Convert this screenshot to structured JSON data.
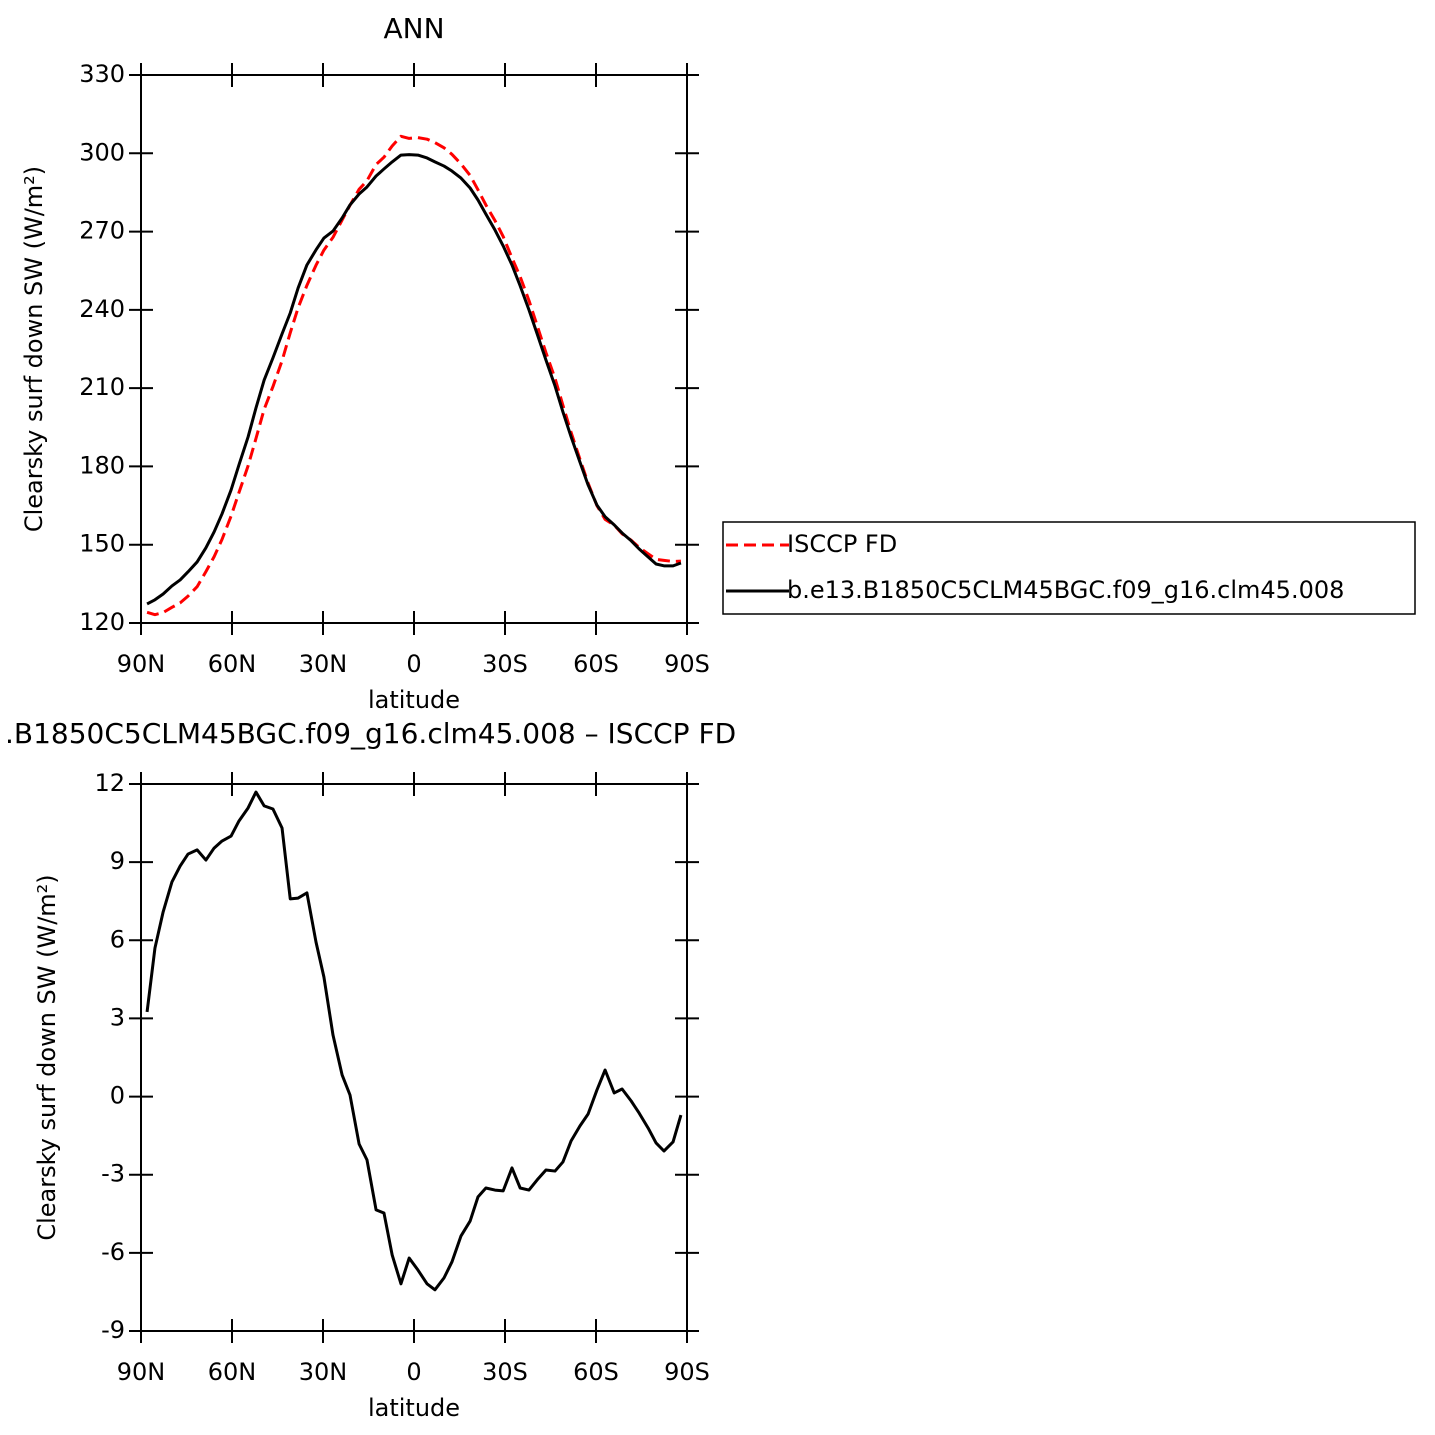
{
  "chart_data": [
    {
      "type": "line",
      "title": "ANN",
      "xlabel": "latitude",
      "ylabel": "Clearsky surf down SW (W/m²)",
      "x": [
        88.0,
        85.4,
        82.7,
        79.8,
        77.1,
        74.5,
        71.5,
        68.6,
        65.9,
        63.3,
        60.3,
        57.7,
        54.7,
        52.1,
        49.4,
        46.5,
        43.5,
        40.8,
        38.2,
        35.3,
        32.3,
        29.7,
        26.7,
        23.7,
        21.1,
        18.1,
        15.5,
        12.5,
        9.9,
        7.2,
        4.3,
        1.6,
        -1.3,
        -4.3,
        -6.9,
        -9.9,
        -12.5,
        -15.5,
        -18.5,
        -21.1,
        -23.7,
        -26.7,
        -29.4,
        -32.3,
        -35.0,
        -37.9,
        -40.6,
        -43.5,
        -46.5,
        -49.1,
        -51.8,
        -54.7,
        -57.4,
        -60.3,
        -63.0,
        -66.0,
        -68.6,
        -71.6,
        -74.2,
        -77.2,
        -79.8,
        -82.4,
        -85.4,
        -88.0
      ],
      "xlim": [
        90,
        -90
      ],
      "xticks": [
        {
          "value": 90,
          "label": "90N"
        },
        {
          "value": 60,
          "label": "60N"
        },
        {
          "value": 30,
          "label": "30N"
        },
        0,
        {
          "value": -30,
          "label": "30S"
        },
        {
          "value": -60,
          "label": "60S"
        },
        {
          "value": -90,
          "label": "90S"
        }
      ],
      "ylim": [
        120,
        330
      ],
      "yticks": [
        120,
        150,
        180,
        210,
        240,
        270,
        300,
        330
      ],
      "legend": "right",
      "series": [
        {
          "name": "ISCCP FD",
          "color": "#ff0000",
          "line_style": "dashed",
          "values": [
            124.1,
            123.2,
            124.0,
            126.0,
            127.7,
            130.3,
            133.9,
            139.7,
            145.4,
            152.0,
            161.0,
            170.0,
            180.2,
            190.7,
            201.9,
            210.6,
            220.5,
            231.2,
            240.8,
            249.4,
            257.1,
            262.9,
            267.8,
            274.4,
            280.1,
            286.2,
            289.5,
            295.7,
            298.5,
            302.8,
            306.5,
            305.7,
            306.0,
            305.4,
            304.1,
            302.1,
            299.6,
            295.9,
            291.5,
            286.0,
            280.2,
            274.2,
            268.1,
            259.9,
            252.7,
            243.6,
            234.0,
            223.6,
            213.7,
            203.4,
            193.0,
            182.8,
            173.6,
            165.0,
            159.7,
            157.5,
            154.2,
            151.7,
            149.0,
            146.5,
            144.4,
            144.0,
            143.6,
            143.7
          ]
        },
        {
          "name": "b.e13.B1850C5CLM45BGC.f09_g16.clm45.008",
          "color": "#000000",
          "line_style": "solid",
          "values": [
            127.3,
            128.9,
            131.1,
            134.2,
            136.5,
            139.6,
            143.4,
            148.8,
            154.9,
            161.8,
            171.0,
            180.6,
            191.3,
            202.4,
            213.1,
            221.6,
            230.8,
            238.8,
            248.4,
            257.2,
            263.0,
            267.5,
            270.2,
            275.2,
            280.2,
            284.4,
            287.1,
            291.3,
            294.0,
            296.7,
            299.3,
            299.5,
            299.3,
            298.2,
            296.7,
            295.1,
            293.2,
            290.5,
            286.7,
            282.1,
            276.7,
            270.6,
            264.5,
            257.2,
            249.2,
            240.0,
            230.8,
            220.8,
            210.8,
            200.9,
            191.3,
            181.7,
            172.9,
            165.2,
            160.7,
            157.6,
            154.5,
            151.5,
            148.4,
            145.3,
            142.6,
            141.9,
            141.9,
            143.0
          ]
        }
      ]
    },
    {
      "type": "line",
      "title": ".B1850C5CLM45BGC.f09_g16.clm45.008 – ISCCP FD",
      "xlabel": "latitude",
      "ylabel": "Clearsky surf down SW (W/m²)",
      "x": [
        88.0,
        85.4,
        82.7,
        79.8,
        77.1,
        74.5,
        71.5,
        68.6,
        65.9,
        63.3,
        60.3,
        57.7,
        54.7,
        52.1,
        49.4,
        46.5,
        43.5,
        40.8,
        38.2,
        35.3,
        32.3,
        29.7,
        26.7,
        23.7,
        21.1,
        18.1,
        15.5,
        12.5,
        9.9,
        7.2,
        4.3,
        1.6,
        -1.3,
        -4.3,
        -6.9,
        -9.9,
        -12.5,
        -15.5,
        -18.5,
        -21.1,
        -23.7,
        -26.7,
        -29.4,
        -32.3,
        -35.0,
        -37.9,
        -40.6,
        -43.5,
        -46.5,
        -49.1,
        -51.8,
        -54.7,
        -57.4,
        -60.3,
        -63.0,
        -66.0,
        -68.6,
        -71.6,
        -74.2,
        -77.2,
        -79.8,
        -82.4,
        -85.4,
        -88.0
      ],
      "xlim": [
        90,
        -90
      ],
      "xticks": [
        {
          "value": 90,
          "label": "90N"
        },
        {
          "value": 60,
          "label": "60N"
        },
        {
          "value": 30,
          "label": "30N"
        },
        0,
        {
          "value": -30,
          "label": "30S"
        },
        {
          "value": -60,
          "label": "60S"
        },
        {
          "value": -90,
          "label": "90S"
        }
      ],
      "ylim": [
        -9,
        12
      ],
      "yticks": [
        -9,
        -6,
        -3,
        0,
        3,
        6,
        9,
        12
      ],
      "color": "#000000",
      "values": [
        3.25,
        5.7,
        7.09,
        8.24,
        8.85,
        9.31,
        9.47,
        9.08,
        9.54,
        9.81,
        10.0,
        10.58,
        11.08,
        11.69,
        11.16,
        11.04,
        10.31,
        7.59,
        7.62,
        7.82,
        5.93,
        4.59,
        2.36,
        0.83,
        0.06,
        -1.82,
        -2.43,
        -4.35,
        -4.47,
        -6.08,
        -7.19,
        -6.2,
        -6.66,
        -7.19,
        -7.42,
        -6.96,
        -6.35,
        -5.35,
        -4.78,
        -3.85,
        -3.51,
        -3.59,
        -3.62,
        -2.74,
        -3.51,
        -3.59,
        -3.2,
        -2.82,
        -2.86,
        -2.51,
        -1.7,
        -1.13,
        -0.67,
        0.25,
        1.02,
        0.14,
        0.29,
        -0.17,
        -0.63,
        -1.21,
        -1.78,
        -2.09,
        -1.74,
        -0.71
      ]
    }
  ]
}
